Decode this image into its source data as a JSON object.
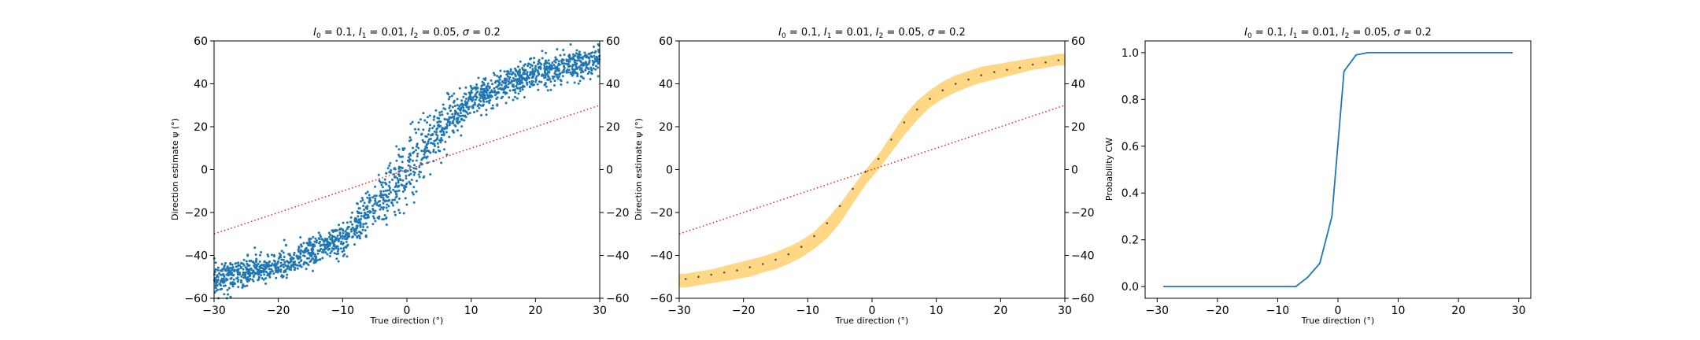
{
  "chart_data": [
    {
      "type": "scatter",
      "title": "I_0=0.1, I_1=0.01, I_2=0.05, σ=0.2",
      "title_parts": {
        "I0": "I",
        "I0_sub": "0",
        "v0": " = 0.1, ",
        "I1": "I",
        "I1_sub": "1",
        "v1": " = 0.01, ",
        "I2": "I",
        "I2_sub": "2",
        "v2": " = 0.05, ",
        "sigma": "σ",
        "vs": " = 0.2"
      },
      "xlabel": "True direction (°)",
      "ylabel": "Direction estimate ψ (°)",
      "xlim": [
        -30,
        30
      ],
      "ylim": [
        -60,
        60
      ],
      "xticks": [
        "−30",
        "−20",
        "−10",
        "0",
        "10",
        "20",
        "30"
      ],
      "yticks": [
        "60",
        "40",
        "20",
        "0",
        "−20",
        "−40",
        "−60"
      ],
      "right_yticks": [
        "60",
        "40",
        "20",
        "0",
        "−20",
        "−40",
        "−60"
      ],
      "series": [
        {
          "kind": "scatter",
          "color": "#1f77b4",
          "x_range": [
            -30,
            30
          ],
          "curve": "sigmoid",
          "y_at_x": {
            "-30": -51,
            "-20": -45,
            "-10": -33,
            "-5": -18,
            "0": 0,
            "5": 18,
            "10": 33,
            "20": 45,
            "30": 51
          },
          "spread": 3.5,
          "n_points": 2000
        },
        {
          "kind": "line",
          "style": "dotted",
          "color": "#d62728",
          "x": [
            -30,
            30
          ],
          "y": [
            -30,
            30
          ]
        }
      ]
    },
    {
      "type": "area",
      "title": "I_0=0.1, I_1=0.01, I_2=0.05, σ=0.2",
      "title_parts": {
        "I0": "I",
        "I0_sub": "0",
        "v0": " = 0.1, ",
        "I1": "I",
        "I1_sub": "1",
        "v1": " = 0.01, ",
        "I2": "I",
        "I2_sub": "2",
        "v2": " = 0.05, ",
        "sigma": "σ",
        "vs": " = 0.2"
      },
      "xlabel": "True direction (°)",
      "ylabel": "Direction estimate ψ (°)",
      "xlim": [
        -30,
        30
      ],
      "ylim": [
        -60,
        60
      ],
      "xticks": [
        "−30",
        "−20",
        "−10",
        "0",
        "10",
        "20",
        "30"
      ],
      "yticks": [
        "60",
        "40",
        "20",
        "0",
        "−20",
        "−40",
        "−60"
      ],
      "right_yticks": [
        "60",
        "40",
        "20",
        "0",
        "−20",
        "−40",
        "−60"
      ],
      "band_color": "#ffc95c",
      "x": [
        -29,
        -27,
        -25,
        -23,
        -21,
        -19,
        -17,
        -15,
        -13,
        -11,
        -9,
        -7,
        -5,
        -3,
        -1,
        1,
        3,
        5,
        7,
        9,
        11,
        13,
        15,
        17,
        19,
        21,
        23,
        25,
        27,
        29
      ],
      "mean": [
        -51,
        -50,
        -49,
        -48,
        -47,
        -45.5,
        -44,
        -42,
        -39.5,
        -36,
        -31,
        -25,
        -17,
        -9,
        -1,
        5,
        14,
        22,
        28,
        33,
        37,
        40,
        42,
        44,
        45.5,
        46.5,
        47.5,
        49,
        50,
        51
      ],
      "lower": [
        -55,
        -54,
        -53,
        -52,
        -51,
        -50,
        -48,
        -46.5,
        -44,
        -41,
        -37,
        -32,
        -25,
        -16,
        -7,
        0,
        8,
        16,
        23,
        29,
        33,
        36,
        38.5,
        40.5,
        42,
        43.5,
        45,
        46.5,
        47.5,
        48.5
      ],
      "upper": [
        -48.5,
        -47.5,
        -46.5,
        -45,
        -43.5,
        -42,
        -40.5,
        -38.5,
        -36,
        -33,
        -29,
        -23,
        -16,
        -8,
        0,
        7,
        16,
        25,
        32,
        37,
        41,
        44,
        46,
        48,
        49,
        50,
        51,
        52,
        53,
        54
      ],
      "series": [
        {
          "kind": "line",
          "style": "dotted",
          "color": "#d62728",
          "x": [
            -30,
            30
          ],
          "y": [
            -30,
            30
          ]
        }
      ]
    },
    {
      "type": "line",
      "title": "I_0=0.1, I_1=0.01, I_2=0.05, σ=0.2",
      "title_parts": {
        "I0": "I",
        "I0_sub": "0",
        "v0": " = 0.1, ",
        "I1": "I",
        "I1_sub": "1",
        "v1": " = 0.01, ",
        "I2": "I",
        "I2_sub": "2",
        "v2": " = 0.05, ",
        "sigma": "σ",
        "vs": " = 0.2"
      },
      "xlabel": "True direction (°)",
      "ylabel": "Probability CW",
      "xlim": [
        -32,
        32
      ],
      "ylim": [
        -0.05,
        1.05
      ],
      "xticks": [
        "−30",
        "−20",
        "−10",
        "0",
        "10",
        "20",
        "30"
      ],
      "yticks": [
        "1.0",
        "0.8",
        "0.6",
        "0.4",
        "0.2",
        "0.0"
      ],
      "color": "#1f77b4",
      "x": [
        -29,
        -27,
        -25,
        -23,
        -21,
        -19,
        -17,
        -15,
        -13,
        -11,
        -9,
        -7,
        -5,
        -3,
        -1,
        1,
        3,
        5,
        7,
        9,
        11,
        13,
        15,
        17,
        19,
        21,
        23,
        25,
        27,
        29
      ],
      "y": [
        0,
        0,
        0,
        0,
        0,
        0,
        0,
        0,
        0,
        0,
        0,
        0,
        0.04,
        0.1,
        0.3,
        0.92,
        0.99,
        1,
        1,
        1,
        1,
        1,
        1,
        1,
        1,
        1,
        1,
        1,
        1,
        1
      ]
    }
  ]
}
